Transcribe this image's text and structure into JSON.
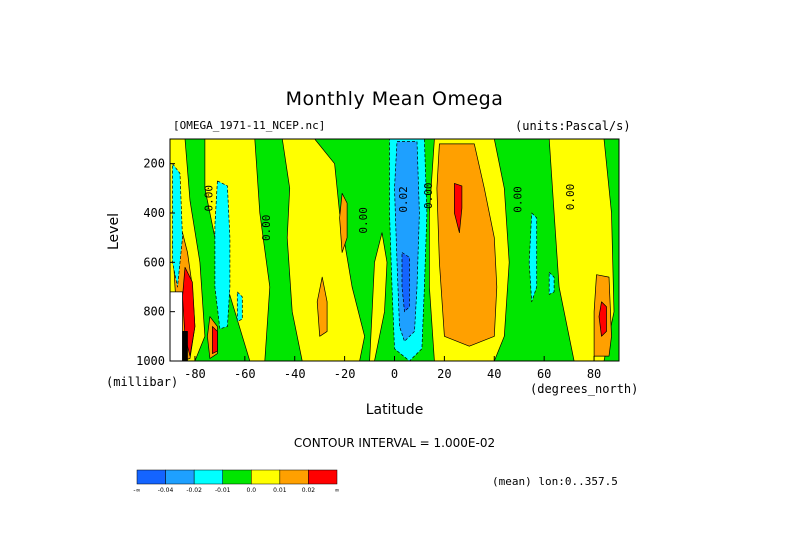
{
  "figure": {
    "title": "Monthly Mean Omega",
    "file_label": "[OMEGA_1971-11_NCEP.nc]",
    "units_label": "(units:Pascal/s)",
    "y_label": "Level",
    "y_units": "(millibar)",
    "x_label": "Latitude",
    "x_units": "(degrees_north)",
    "contour_interval": "CONTOUR INTERVAL = 1.000E-02",
    "mean_label": "(mean) lon:0..357.5"
  },
  "chart_data": {
    "type": "heatmap",
    "subtype": "filled-contour",
    "xlim": [
      -90,
      90
    ],
    "ylim": [
      1000,
      100
    ],
    "x_ticks": [
      -80,
      -60,
      -40,
      -20,
      0,
      20,
      40,
      60,
      80
    ],
    "x_tick_labels": [
      "-80",
      "-60",
      "-40",
      "-20",
      "0",
      "20",
      "40",
      "60",
      "80"
    ],
    "y_ticks": [
      200,
      400,
      600,
      800,
      1000
    ],
    "y_tick_labels": [
      "200",
      "400",
      "600",
      "800",
      "1000"
    ],
    "contour_labels": [
      {
        "text": "0.00",
        "lat": -73,
        "lev": 340
      },
      {
        "text": "0.00",
        "lat": -50,
        "lev": 460
      },
      {
        "text": "0.00",
        "lat": -11,
        "lev": 430
      },
      {
        "text": "0.02",
        "lat": 5,
        "lev": 345
      },
      {
        "text": "0.00",
        "lat": 15,
        "lev": 330
      },
      {
        "text": "0.00",
        "lat": 51,
        "lev": 345
      },
      {
        "text": "0.00",
        "lat": 72,
        "lev": 335
      }
    ],
    "colorbar": {
      "colors": [
        "#1464ff",
        "#1ea0ff",
        "#00ffff",
        "#00e600",
        "#ffff00",
        "#ffa000",
        "#ff0000"
      ],
      "labels": [
        "-∞",
        "-0.04",
        "-0.02",
        "-0.01",
        "0.0",
        "0.01",
        "0.02",
        "∞"
      ]
    },
    "regions": [
      {
        "value": 0.005,
        "color": "#ffff00",
        "points": [
          [
            -76,
            100
          ],
          [
            -56,
            100
          ],
          [
            -54,
            400
          ],
          [
            -50,
            700
          ],
          [
            -52,
            1000
          ],
          [
            -58,
            1000
          ],
          [
            -64,
            800
          ],
          [
            -70,
            600
          ],
          [
            -76,
            300
          ]
        ]
      },
      {
        "value": 0.005,
        "color": "#ffff00",
        "points": [
          [
            -45,
            100
          ],
          [
            -32,
            100
          ],
          [
            -24,
            200
          ],
          [
            -22,
            400
          ],
          [
            -17,
            700
          ],
          [
            -12,
            900
          ],
          [
            -14,
            1000
          ],
          [
            -37,
            1000
          ],
          [
            -41,
            800
          ],
          [
            -43,
            500
          ],
          [
            -42,
            300
          ]
        ]
      },
      {
        "value": 0.005,
        "color": "#ffff00",
        "points": [
          [
            16,
            100
          ],
          [
            40,
            100
          ],
          [
            44,
            300
          ],
          [
            46,
            600
          ],
          [
            44,
            900
          ],
          [
            40,
            1000
          ],
          [
            16,
            1000
          ],
          [
            14,
            700
          ],
          [
            14,
            400
          ]
        ]
      },
      {
        "value": 0.005,
        "color": "#ffff00",
        "points": [
          [
            62,
            100
          ],
          [
            84,
            100
          ],
          [
            87,
            400
          ],
          [
            88,
            800
          ],
          [
            84,
            1000
          ],
          [
            72,
            1000
          ],
          [
            66,
            700
          ],
          [
            64,
            400
          ]
        ]
      },
      {
        "value": 0.005,
        "color": "#ffff00",
        "points": [
          [
            -90,
            100
          ],
          [
            -84,
            100
          ],
          [
            -82,
            350
          ],
          [
            -78,
            600
          ],
          [
            -76,
            900
          ],
          [
            -80,
            1000
          ],
          [
            -90,
            1000
          ]
        ]
      },
      {
        "value": 0.005,
        "color": "#ffff00",
        "points": [
          [
            -5,
            480
          ],
          [
            -3,
            600
          ],
          [
            -4,
            800
          ],
          [
            -8,
            1000
          ],
          [
            -10,
            1000
          ],
          [
            -9,
            800
          ],
          [
            -8,
            600
          ]
        ]
      },
      {
        "value": 0.015,
        "color": "#ffa000",
        "points": [
          [
            18,
            120
          ],
          [
            32,
            120
          ],
          [
            36,
            300
          ],
          [
            40,
            500
          ],
          [
            41,
            700
          ],
          [
            40,
            900
          ],
          [
            30,
            940
          ],
          [
            20,
            900
          ],
          [
            18,
            600
          ],
          [
            17,
            300
          ]
        ]
      },
      {
        "value": 0.015,
        "color": "#ffa000",
        "points": [
          [
            -85,
            480
          ],
          [
            -83,
            560
          ],
          [
            -81,
            700
          ],
          [
            -80,
            860
          ],
          [
            -82,
            990
          ],
          [
            -86,
            1000
          ],
          [
            -88,
            700
          ],
          [
            -89,
            520
          ]
        ]
      },
      {
        "value": 0.015,
        "color": "#ffa000",
        "points": [
          [
            -29,
            660
          ],
          [
            -27,
            760
          ],
          [
            -27,
            880
          ],
          [
            -30,
            900
          ],
          [
            -31,
            760
          ]
        ]
      },
      {
        "value": 0.015,
        "color": "#ffa000",
        "points": [
          [
            -21,
            320
          ],
          [
            -19,
            360
          ],
          [
            -19,
            500
          ],
          [
            -21,
            560
          ],
          [
            -22,
            420
          ]
        ]
      },
      {
        "value": 0.015,
        "color": "#ffa000",
        "points": [
          [
            81,
            650
          ],
          [
            86,
            660
          ],
          [
            87,
            900
          ],
          [
            86,
            980
          ],
          [
            80,
            980
          ],
          [
            80,
            800
          ]
        ]
      },
      {
        "value": 0.015,
        "color": "#ffa000",
        "points": [
          [
            -74,
            820
          ],
          [
            -71,
            860
          ],
          [
            -71,
            970
          ],
          [
            -74,
            990
          ],
          [
            -75,
            900
          ]
        ]
      },
      {
        "value": 0.025,
        "color": "#ff0000",
        "points": [
          [
            24,
            280
          ],
          [
            27,
            290
          ],
          [
            27,
            380
          ],
          [
            26,
            480
          ],
          [
            24,
            400
          ]
        ]
      },
      {
        "value": 0.025,
        "color": "#ff0000",
        "points": [
          [
            -84,
            620
          ],
          [
            -81,
            680
          ],
          [
            -80,
            860
          ],
          [
            -82,
            980
          ],
          [
            -84,
            900
          ],
          [
            -85,
            740
          ]
        ]
      },
      {
        "value": 0.025,
        "color": "#ff0000",
        "points": [
          [
            83,
            760
          ],
          [
            85,
            780
          ],
          [
            85,
            880
          ],
          [
            83,
            900
          ],
          [
            82,
            820
          ]
        ]
      },
      {
        "value": 0.025,
        "color": "#ff0000",
        "points": [
          [
            -73,
            860
          ],
          [
            -71,
            880
          ],
          [
            -71,
            960
          ],
          [
            -73,
            970
          ]
        ]
      },
      {
        "value": -0.015,
        "color": "#00ffff",
        "points": [
          [
            -71,
            270
          ],
          [
            -67,
            290
          ],
          [
            -66,
            500
          ],
          [
            -66,
            700
          ],
          [
            -67,
            860
          ],
          [
            -70,
            870
          ],
          [
            -72,
            700
          ],
          [
            -72,
            450
          ]
        ]
      },
      {
        "value": -0.015,
        "color": "#00ffff",
        "points": [
          [
            -2,
            100
          ],
          [
            12,
            100
          ],
          [
            13,
            400
          ],
          [
            12,
            700
          ],
          [
            11,
            950
          ],
          [
            6,
            1000
          ],
          [
            0,
            950
          ],
          [
            -1,
            700
          ],
          [
            -2,
            400
          ]
        ]
      },
      {
        "value": -0.015,
        "color": "#00ffff",
        "points": [
          [
            -89,
            200
          ],
          [
            -86,
            240
          ],
          [
            -85,
            500
          ],
          [
            -87,
            700
          ],
          [
            -89,
            600
          ]
        ]
      },
      {
        "value": -0.015,
        "color": "#00ffff",
        "points": [
          [
            55,
            400
          ],
          [
            57,
            420
          ],
          [
            57,
            700
          ],
          [
            55,
            760
          ],
          [
            54,
            600
          ]
        ]
      },
      {
        "value": -0.015,
        "color": "#00ffff",
        "points": [
          [
            -63,
            720
          ],
          [
            -61,
            740
          ],
          [
            -61,
            830
          ],
          [
            -63,
            840
          ]
        ]
      },
      {
        "value": -0.015,
        "color": "#00ffff",
        "points": [
          [
            62,
            640
          ],
          [
            64,
            660
          ],
          [
            64,
            720
          ],
          [
            62,
            730
          ]
        ]
      },
      {
        "value": -0.025,
        "color": "#1ea0ff",
        "points": [
          [
            1,
            110
          ],
          [
            9,
            110
          ],
          [
            10,
            400
          ],
          [
            9,
            700
          ],
          [
            8,
            880
          ],
          [
            4,
            920
          ],
          [
            2,
            860
          ],
          [
            1,
            600
          ],
          [
            0,
            300
          ]
        ]
      },
      {
        "value": -0.035,
        "color": "#1464ff",
        "points": [
          [
            3,
            560
          ],
          [
            6,
            580
          ],
          [
            6,
            780
          ],
          [
            4,
            800
          ],
          [
            3,
            700
          ]
        ]
      },
      {
        "value": 0.02,
        "color": "#ffffff",
        "points": [
          [
            -90,
            720
          ],
          [
            -85,
            720
          ],
          [
            -85,
            1000
          ],
          [
            -90,
            1000
          ]
        ]
      },
      {
        "value": 0.04,
        "color": "#000000",
        "points": [
          [
            -85,
            880
          ],
          [
            -83,
            880
          ],
          [
            -83,
            1000
          ],
          [
            -85,
            1000
          ]
        ]
      }
    ]
  }
}
